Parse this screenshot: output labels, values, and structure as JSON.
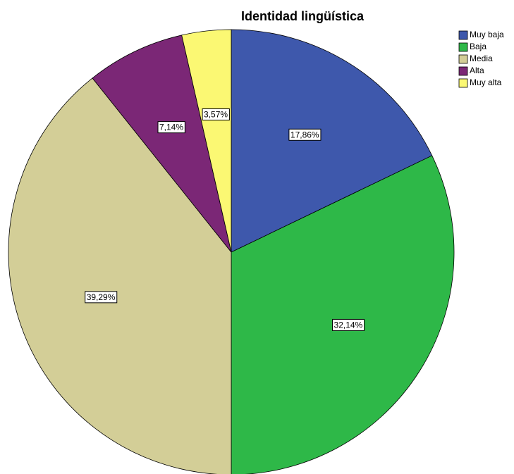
{
  "chart_data": {
    "type": "pie",
    "title": "Identidad lingüística",
    "categories": [
      "Muy baja",
      "Baja",
      "Media",
      "Alta",
      "Muy alta"
    ],
    "values": [
      17.86,
      32.14,
      39.29,
      7.14,
      3.57
    ],
    "value_labels": [
      "17,86%",
      "32,14%",
      "39,29%",
      "7,14%",
      "3,57%"
    ],
    "colors": [
      "#3e58ac",
      "#2eb848",
      "#d3ce97",
      "#7b2776",
      "#fbf873"
    ],
    "legend": "right"
  }
}
